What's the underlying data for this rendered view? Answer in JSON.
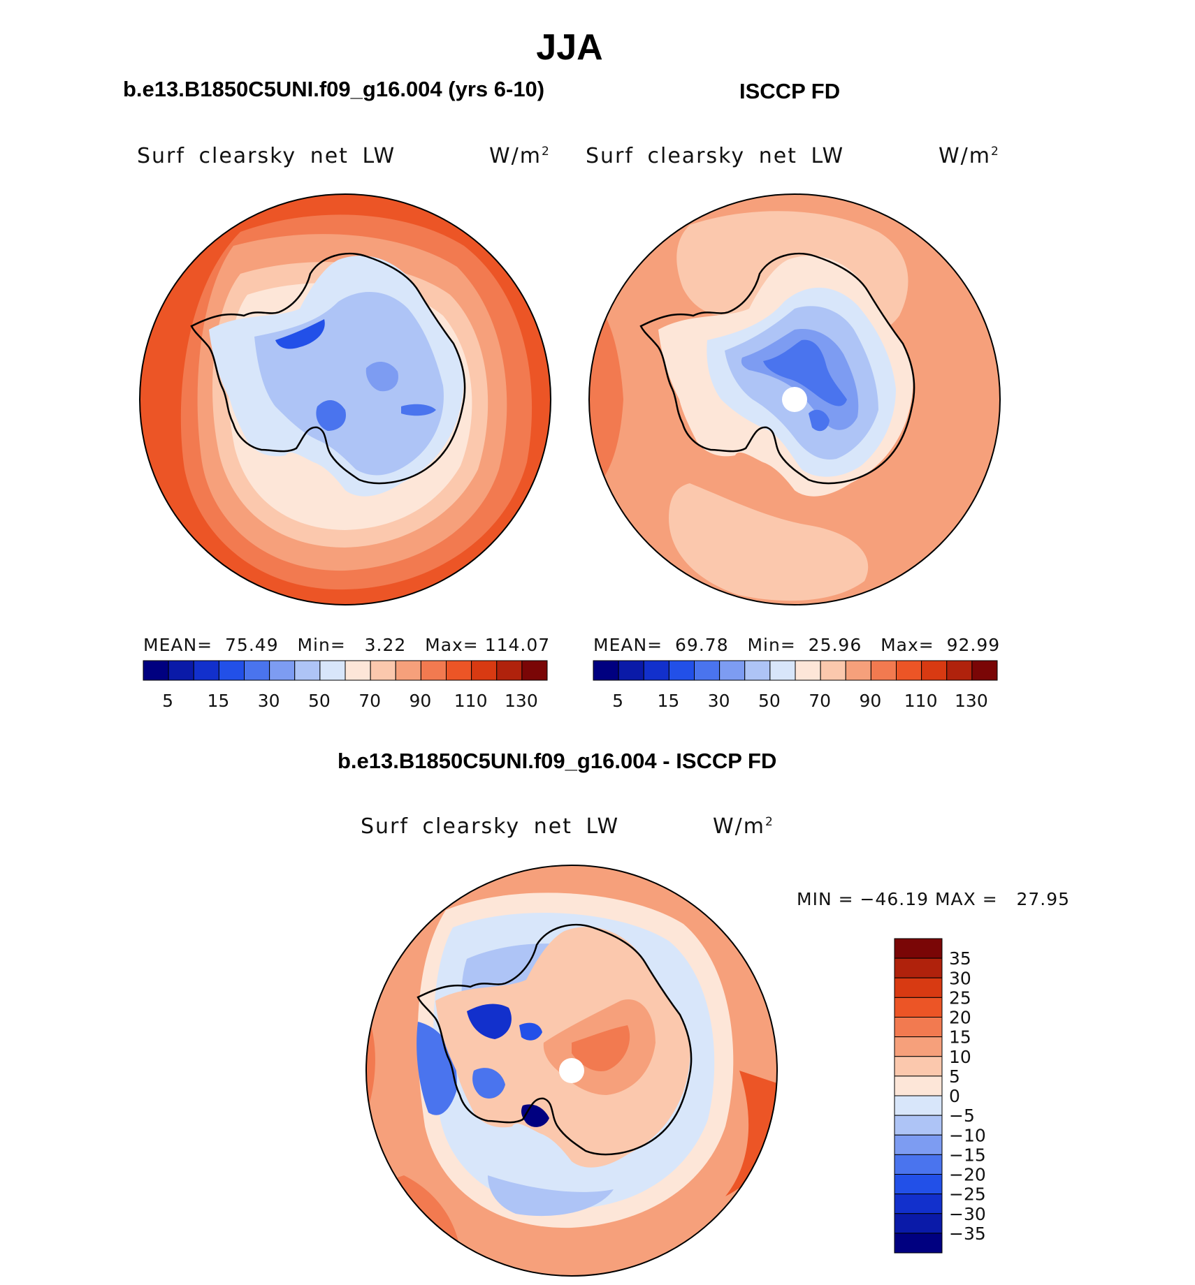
{
  "main_title": "JJA",
  "panels": {
    "model": {
      "case_title": "b.e13.B1850C5UNI.f09_g16.004 (yrs 6-10)",
      "variable": "Surf clearsky net LW",
      "units_base": "W/m",
      "units_exp": "2",
      "stats": {
        "mean_label": "MEAN=",
        "mean": "75.49",
        "min_label": "Min=",
        "min": "3.22",
        "max_label": "Max=",
        "max": "114.07"
      }
    },
    "obs": {
      "case_title": "ISCCP FD",
      "variable": "Surf clearsky net LW",
      "units_base": "W/m",
      "units_exp": "2",
      "stats": {
        "mean_label": "MEAN=",
        "mean": "69.78",
        "min_label": "Min=",
        "min": "25.96",
        "max_label": "Max=",
        "max": "92.99"
      }
    },
    "diff": {
      "case_title": "b.e13.B1850C5UNI.f09_g16.004 - ISCCP FD",
      "variable": "Surf clearsky net LW",
      "units_base": "W/m",
      "units_exp": "2",
      "stats_text": "MIN = −46.19 MAX =   27.95"
    }
  },
  "chart_data": [
    {
      "type": "heatmap",
      "projection": "south polar stereographic",
      "title": "b.e13.B1850C5UNI.f09_g16.004 (yrs 6-10)",
      "variable": "Surf clearsky net LW",
      "units": "W/m2",
      "mean": 75.49,
      "min": 3.22,
      "max": 114.07,
      "contour_levels": [
        5,
        15,
        30,
        50,
        70,
        90,
        110,
        130
      ],
      "colorbar_ticks": [
        "5",
        "15",
        "30",
        "50",
        "70",
        "90",
        "110",
        "130"
      ],
      "colors": [
        "#000080",
        "#0a1aa8",
        "#1230cc",
        "#2250e8",
        "#4a74ee",
        "#7d9cf2",
        "#aec4f6",
        "#d8e6fa",
        "#fde6d8",
        "#fbc8ad",
        "#f6a07b",
        "#f27a50",
        "#ec5526",
        "#d83a12",
        "#b0220c",
        "#7a0606"
      ],
      "pattern": "ocean high (110-130), interior low (15-50)"
    },
    {
      "type": "heatmap",
      "projection": "south polar stereographic",
      "title": "ISCCP FD",
      "variable": "Surf clearsky net LW",
      "units": "W/m2",
      "mean": 69.78,
      "min": 25.96,
      "max": 92.99,
      "contour_levels": [
        5,
        15,
        30,
        50,
        70,
        90,
        110,
        130
      ],
      "colorbar_ticks": [
        "5",
        "15",
        "30",
        "50",
        "70",
        "90",
        "110",
        "130"
      ],
      "pattern": "ocean 70-110, interior 30-50"
    },
    {
      "type": "heatmap",
      "projection": "south polar stereographic",
      "title": "b.e13.B1850C5UNI.f09_g16.004 - ISCCP FD",
      "variable": "Surf clearsky net LW",
      "units": "W/m2",
      "min": -46.19,
      "max": 27.95,
      "contour_levels": [
        35,
        30,
        25,
        20,
        15,
        10,
        5,
        0,
        -5,
        -10,
        -15,
        -20,
        -25,
        -30,
        -35
      ],
      "colorbar_ticks": [
        "35",
        "30",
        "25",
        "20",
        "15",
        "10",
        "5",
        "0",
        "−5",
        "−10",
        "−15",
        "−20",
        "−25",
        "−30",
        "−35"
      ],
      "colors": [
        "#7a0606",
        "#b0220c",
        "#d83a12",
        "#ec5526",
        "#f27a50",
        "#f6a07b",
        "#fbc8ad",
        "#fde6d8",
        "#d8e6fa",
        "#aec4f6",
        "#7d9cf2",
        "#4a74ee",
        "#2250e8",
        "#1230cc",
        "#0a1aa8",
        "#000080"
      ],
      "pattern": "interior positive (0-15), coastal negative (-5 to -35)"
    }
  ]
}
